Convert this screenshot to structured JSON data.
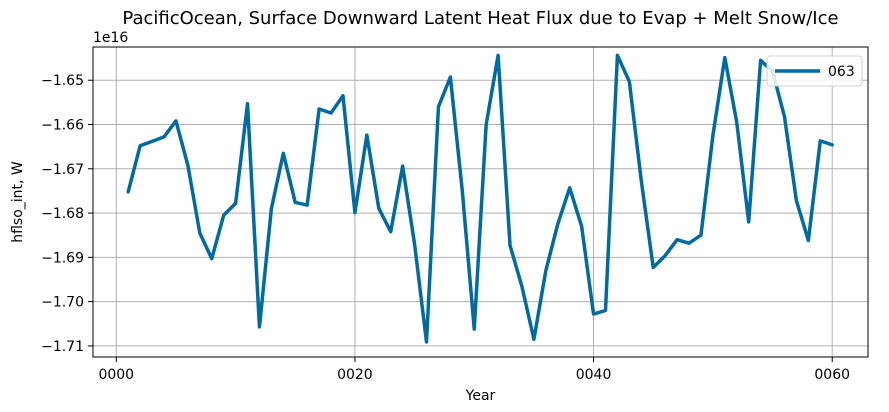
{
  "chart_data": {
    "type": "line",
    "title": "PacificOcean, Surface Downward Latent Heat Flux due to Evap + Melt Snow/Ice",
    "xlabel": "Year",
    "ylabel": "hflso_int, W",
    "offset_text": "1e16",
    "y_scale_factor": 1e+16,
    "xlim": [
      -1.95,
      63.0
    ],
    "ylim": [
      -1.7125,
      -1.6425
    ],
    "x_ticks": [
      0,
      20,
      40,
      60
    ],
    "x_tick_labels": [
      "0000",
      "0020",
      "0040",
      "0060"
    ],
    "y_ticks": [
      -1.71,
      -1.7,
      -1.69,
      -1.68,
      -1.67,
      -1.66,
      -1.65
    ],
    "y_tick_labels": [
      "−1.71",
      "−1.70",
      "−1.69",
      "−1.68",
      "−1.67",
      "−1.66",
      "−1.65"
    ],
    "grid": true,
    "legend_location": "upper right",
    "series": [
      {
        "name": "063",
        "color": "#006aa3",
        "x": [
          1,
          2,
          3,
          4,
          5,
          6,
          7,
          8,
          9,
          10,
          11,
          12,
          13,
          14,
          15,
          16,
          17,
          18,
          19,
          20,
          21,
          22,
          23,
          24,
          25,
          26,
          27,
          28,
          29,
          30,
          31,
          32,
          33,
          34,
          35,
          36,
          37,
          38,
          39,
          40,
          41,
          42,
          43,
          44,
          45,
          46,
          47,
          48,
          49,
          50,
          51,
          52,
          53,
          54,
          55,
          56,
          57,
          58,
          59,
          60
        ],
        "values": [
          -1.6752,
          -1.6648,
          -1.6638,
          -1.6628,
          -1.6592,
          -1.6692,
          -1.6845,
          -1.6903,
          -1.6805,
          -1.6778,
          -1.6553,
          -1.7057,
          -1.679,
          -1.6665,
          -1.6776,
          -1.6782,
          -1.6565,
          -1.6574,
          -1.6535,
          -1.6799,
          -1.6624,
          -1.6789,
          -1.6842,
          -1.6694,
          -1.687,
          -1.7091,
          -1.656,
          -1.6493,
          -1.675,
          -1.7062,
          -1.66,
          -1.6444,
          -1.6873,
          -1.6966,
          -1.7085,
          -1.693,
          -1.6825,
          -1.6743,
          -1.683,
          -1.7028,
          -1.702,
          -1.6444,
          -1.6503,
          -1.6727,
          -1.6923,
          -1.6896,
          -1.686,
          -1.6868,
          -1.685,
          -1.6625,
          -1.6449,
          -1.6595,
          -1.682,
          -1.6455,
          -1.648,
          -1.6582,
          -1.6772,
          -1.6862,
          -1.6637,
          -1.6646
        ]
      }
    ]
  }
}
